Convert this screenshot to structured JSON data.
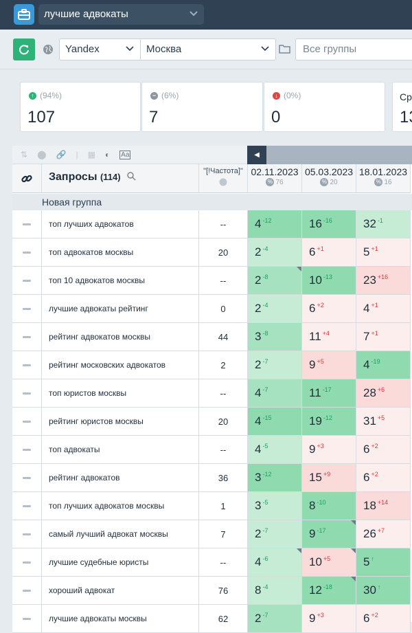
{
  "project": {
    "name": "лучшие адвокаты"
  },
  "toolbar": {
    "engine": "Yandex",
    "region": "Москва",
    "groups_placeholder": "Все группы"
  },
  "stats": [
    {
      "pct": "(94%)",
      "value": "107",
      "status_color": "#2db37a"
    },
    {
      "pct": "(6%)",
      "value": "7",
      "status_color": "#8c969e"
    },
    {
      "pct": "(0%)",
      "value": "0",
      "status_color": "#e04545"
    },
    {
      "pct": "",
      "value": "13",
      "label": "Сре"
    }
  ],
  "table": {
    "title": "Запросы",
    "count": "(114)",
    "freq_header": "\"[!Частота]\"",
    "dates": [
      {
        "date": "02.11.2023",
        "score": "76"
      },
      {
        "date": "05.03.2023",
        "score": "20"
      },
      {
        "date": "18.01.2023",
        "score": "16"
      }
    ],
    "group_name": "Новая группа",
    "rows": [
      {
        "query": "топ лучших адвокатов",
        "freq": "--",
        "p": [
          [
            "4",
            "-12",
            "g3"
          ],
          [
            "16",
            "-16",
            "g3"
          ],
          [
            "32",
            "-1",
            "g1"
          ]
        ]
      },
      {
        "query": "топ адвокатов москвы",
        "freq": "20",
        "p": [
          [
            "2",
            "-4",
            "g1"
          ],
          [
            "6",
            "+1",
            "r1"
          ],
          [
            "5",
            "+1",
            "r1"
          ]
        ]
      },
      {
        "query": "топ 10 адвокатов москвы",
        "freq": "--",
        "p": [
          [
            "2",
            "-8",
            "g2"
          ],
          [
            "10",
            "-13",
            "g3"
          ],
          [
            "23",
            "+16",
            "r2"
          ]
        ]
      },
      {
        "query": "лучшие адвокаты рейтинг",
        "freq": "0",
        "p": [
          [
            "2",
            "-4",
            "g1"
          ],
          [
            "6",
            "+2",
            "r1"
          ],
          [
            "4",
            "+1",
            "r1"
          ]
        ]
      },
      {
        "query": "рейтинг адвокатов москвы",
        "freq": "44",
        "p": [
          [
            "3",
            "-8",
            "g2"
          ],
          [
            "11",
            "+4",
            "r1"
          ],
          [
            "7",
            "+1",
            "r1"
          ]
        ]
      },
      {
        "query": "рейтинг московских адвокатов",
        "freq": "2",
        "p": [
          [
            "2",
            "-7",
            "g1"
          ],
          [
            "9",
            "+5",
            "r2"
          ],
          [
            "4",
            "-19",
            "g3"
          ]
        ]
      },
      {
        "query": "топ юристов москвы",
        "freq": "--",
        "p": [
          [
            "4",
            "-7",
            "g2"
          ],
          [
            "11",
            "-17",
            "g3"
          ],
          [
            "28",
            "+6",
            "r2"
          ]
        ]
      },
      {
        "query": "рейтинг юристов москвы",
        "freq": "20",
        "p": [
          [
            "4",
            "-15",
            "g3"
          ],
          [
            "19",
            "-12",
            "g3"
          ],
          [
            "31",
            "+5",
            "r1"
          ]
        ]
      },
      {
        "query": "топ адвокаты",
        "freq": "--",
        "p": [
          [
            "4",
            "-5",
            "g1"
          ],
          [
            "9",
            "+3",
            "r1"
          ],
          [
            "6",
            "+2",
            "r1"
          ]
        ]
      },
      {
        "query": "рейтинг адвокатов",
        "freq": "36",
        "p": [
          [
            "3",
            "-12",
            "g3"
          ],
          [
            "15",
            "+9",
            "r2"
          ],
          [
            "6",
            "+2",
            "r1"
          ]
        ]
      },
      {
        "query": "топ лучших адвокатов москвы",
        "freq": "1",
        "p": [
          [
            "3",
            "-5",
            "g1"
          ],
          [
            "8",
            "-10",
            "g3"
          ],
          [
            "18",
            "+14",
            "r2"
          ]
        ]
      },
      {
        "query": "самый лучший адвокат москвы",
        "freq": "7",
        "p": [
          [
            "2",
            "-7",
            "g1"
          ],
          [
            "9",
            "-17",
            "g3"
          ],
          [
            "26",
            "+7",
            "r1"
          ]
        ]
      },
      {
        "query": "лучшие судебные юристы",
        "freq": "--",
        "p": [
          [
            "4",
            "-6",
            "g1"
          ],
          [
            "10",
            "+5",
            "r2"
          ],
          [
            "5",
            "↑",
            "g3"
          ]
        ]
      },
      {
        "query": "хороший адвокат",
        "freq": "76",
        "p": [
          [
            "8",
            "-4",
            "g1"
          ],
          [
            "12",
            "-18",
            "g3"
          ],
          [
            "30",
            "↑",
            "g3"
          ]
        ]
      },
      {
        "query": "лучшие адвокаты москвы",
        "freq": "62",
        "p": [
          [
            "2",
            "-7",
            "g2"
          ],
          [
            "9",
            "+3",
            "r1"
          ],
          [
            "6",
            "+2",
            "r1"
          ]
        ]
      }
    ]
  }
}
